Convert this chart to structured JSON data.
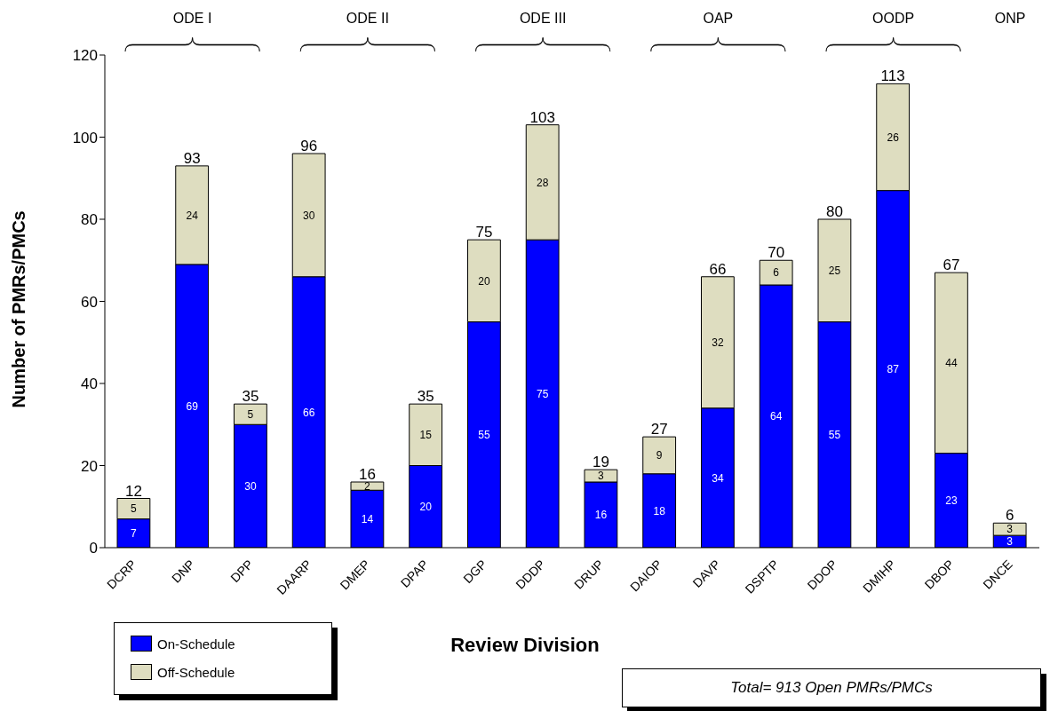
{
  "chart_data": {
    "type": "bar",
    "stacked": true,
    "ylabel": "Number of PMRs/PMCs",
    "xlabel": "Review Division",
    "categories": [
      "DCRP",
      "DNP",
      "DPP",
      "DAARP",
      "DMEP",
      "DPAP",
      "DGP",
      "DDDP",
      "DRUP",
      "DAIOP",
      "DAVP",
      "DSPTP",
      "DDOP",
      "DMIHP",
      "DBOP",
      "DNCE"
    ],
    "series": [
      {
        "name": "On-Schedule",
        "color": "#0000ff",
        "values": [
          7,
          69,
          30,
          66,
          14,
          20,
          55,
          75,
          16,
          18,
          34,
          64,
          55,
          87,
          23,
          3
        ]
      },
      {
        "name": "Off-Schedule",
        "color": "#deddc0",
        "values": [
          5,
          24,
          5,
          30,
          2,
          15,
          20,
          28,
          3,
          9,
          32,
          6,
          25,
          26,
          44,
          3
        ]
      }
    ],
    "totals": [
      "12",
      "93",
      "35",
      "96",
      "16",
      "35",
      "75",
      "103",
      "19",
      "27",
      "66",
      "70",
      "80",
      "113",
      "67",
      "6"
    ],
    "data_labels": true,
    "ylim": [
      0,
      120
    ],
    "yticks": [
      0,
      20,
      40,
      60,
      80,
      100,
      120
    ],
    "grid": false,
    "legend": "bottom left",
    "annotations": [
      "ODE I",
      "ODE II",
      "ODE III",
      "OAP",
      "OODP",
      "ONP",
      "Total= 913 Open PMRs/PMCs"
    ]
  }
}
